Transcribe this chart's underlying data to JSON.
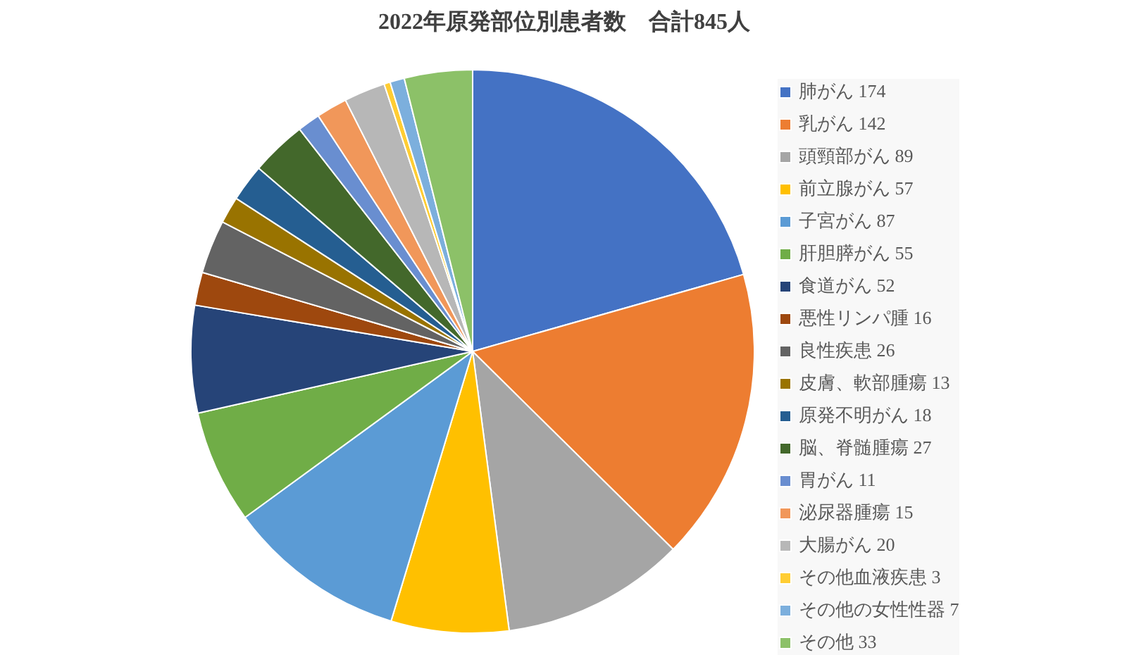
{
  "chart_data": {
    "type": "pie",
    "title": "2022年原発部位別患者数　合計845人",
    "categories": [
      "肺がん 174",
      "乳がん 142",
      "頭頸部がん 89",
      "前立腺がん 57",
      "子宮がん 87",
      "肝胆膵がん 55",
      "食道がん 52",
      "悪性リンパ腫 16",
      "良性疾患 26",
      "皮膚、軟部腫瘍 13",
      "原発不明がん 18",
      "脳、脊髄腫瘍 27",
      "胃がん 11",
      "泌尿器腫瘍 15",
      "大腸がん 20",
      "その他血液疾患 3",
      "その他の女性性器 7",
      "その他 33"
    ],
    "values": [
      174,
      142,
      89,
      57,
      87,
      55,
      52,
      16,
      26,
      13,
      18,
      27,
      11,
      15,
      20,
      3,
      7,
      33
    ],
    "colors": [
      "#4472c4",
      "#ed7d31",
      "#a5a5a5",
      "#ffc000",
      "#5b9bd5",
      "#70ad47",
      "#264478",
      "#9e480e",
      "#636363",
      "#997300",
      "#255e91",
      "#43682b",
      "#698ed0",
      "#f1975a",
      "#b7b7b7",
      "#ffcd33",
      "#7cafdd",
      "#8cc168"
    ],
    "legend": "right"
  }
}
